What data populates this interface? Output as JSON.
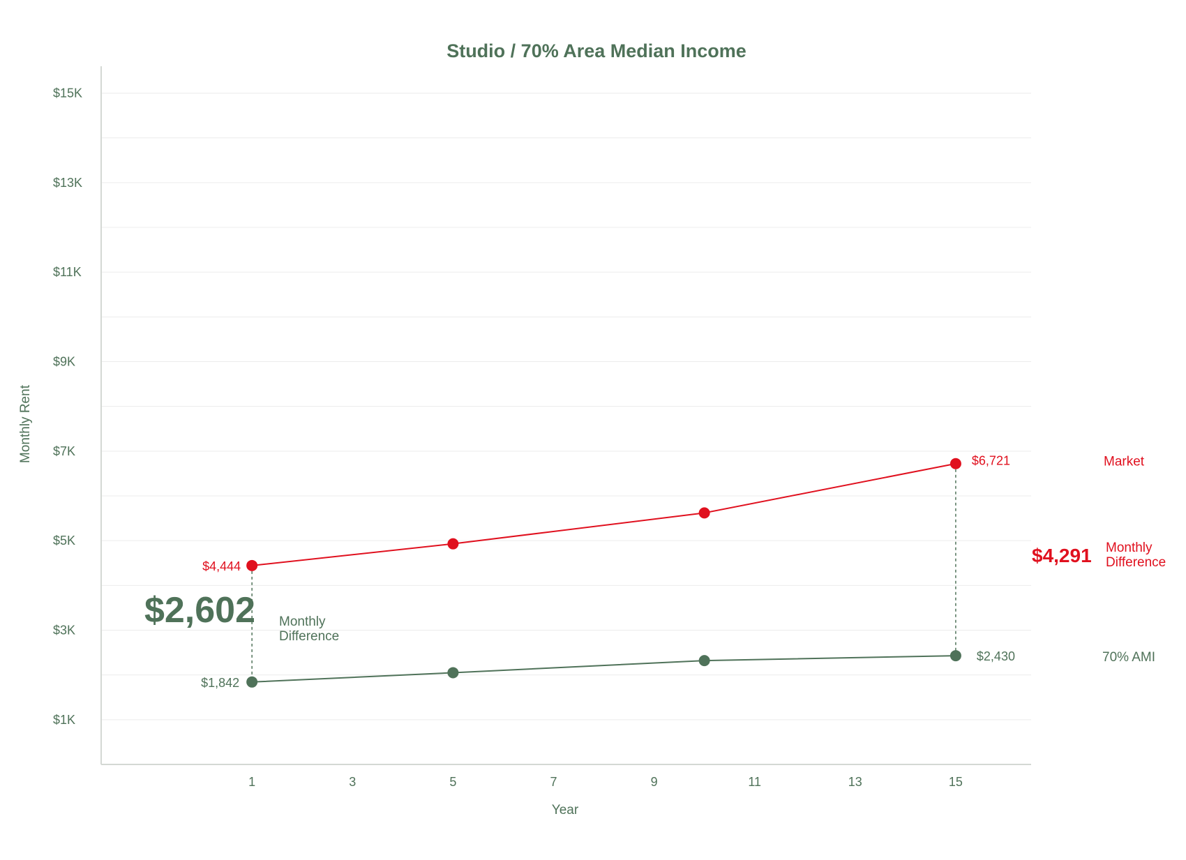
{
  "colors": {
    "market": "#e0101e",
    "ami": "#4f7259",
    "grid": "#ececec",
    "axis": "#d4d8d4",
    "text": "#4f7259"
  },
  "chart_data": {
    "type": "line",
    "title": "Studio / 70% Area Median Income",
    "xlabel": "Year",
    "ylabel": "Monthly Rent",
    "xlim": [
      -2,
      16.5
    ],
    "ylim": [
      0,
      15600
    ],
    "x_ticks": [
      1,
      3,
      5,
      7,
      9,
      11,
      13,
      15
    ],
    "x_tick_labels": [
      "1",
      "3",
      "5",
      "7",
      "9",
      "11",
      "13",
      "15"
    ],
    "y_ticks": [
      1000,
      3000,
      5000,
      7000,
      9000,
      11000,
      13000,
      15000
    ],
    "y_tick_labels": [
      "$1K",
      "$3K",
      "$5K",
      "$7K",
      "$9K",
      "$11K",
      "$13K",
      "$15K"
    ],
    "y_gridlines": [
      1000,
      2000,
      3000,
      4000,
      5000,
      6000,
      7000,
      8000,
      9000,
      10000,
      11000,
      12000,
      13000,
      14000,
      15000
    ],
    "grid": true,
    "series": [
      {
        "name": "Market",
        "color": "#e0101e",
        "x": [
          1,
          5,
          10,
          15
        ],
        "y": [
          4444,
          4930,
          5620,
          6721
        ],
        "start_label": "$4,444",
        "end_label": "$6,721"
      },
      {
        "name": "70% AMI",
        "color": "#4f7259",
        "x": [
          1,
          5,
          10,
          15
        ],
        "y": [
          1842,
          2050,
          2320,
          2430
        ],
        "start_label": "$1,842",
        "end_label": "$2,430"
      }
    ],
    "annotations": [
      {
        "x": 1,
        "value": "$2,602",
        "caption_line1": "Monthly",
        "caption_line2": "Difference"
      },
      {
        "x": 15,
        "value": "$4,291",
        "caption_line1": "Monthly",
        "caption_line2": "Difference"
      }
    ]
  }
}
